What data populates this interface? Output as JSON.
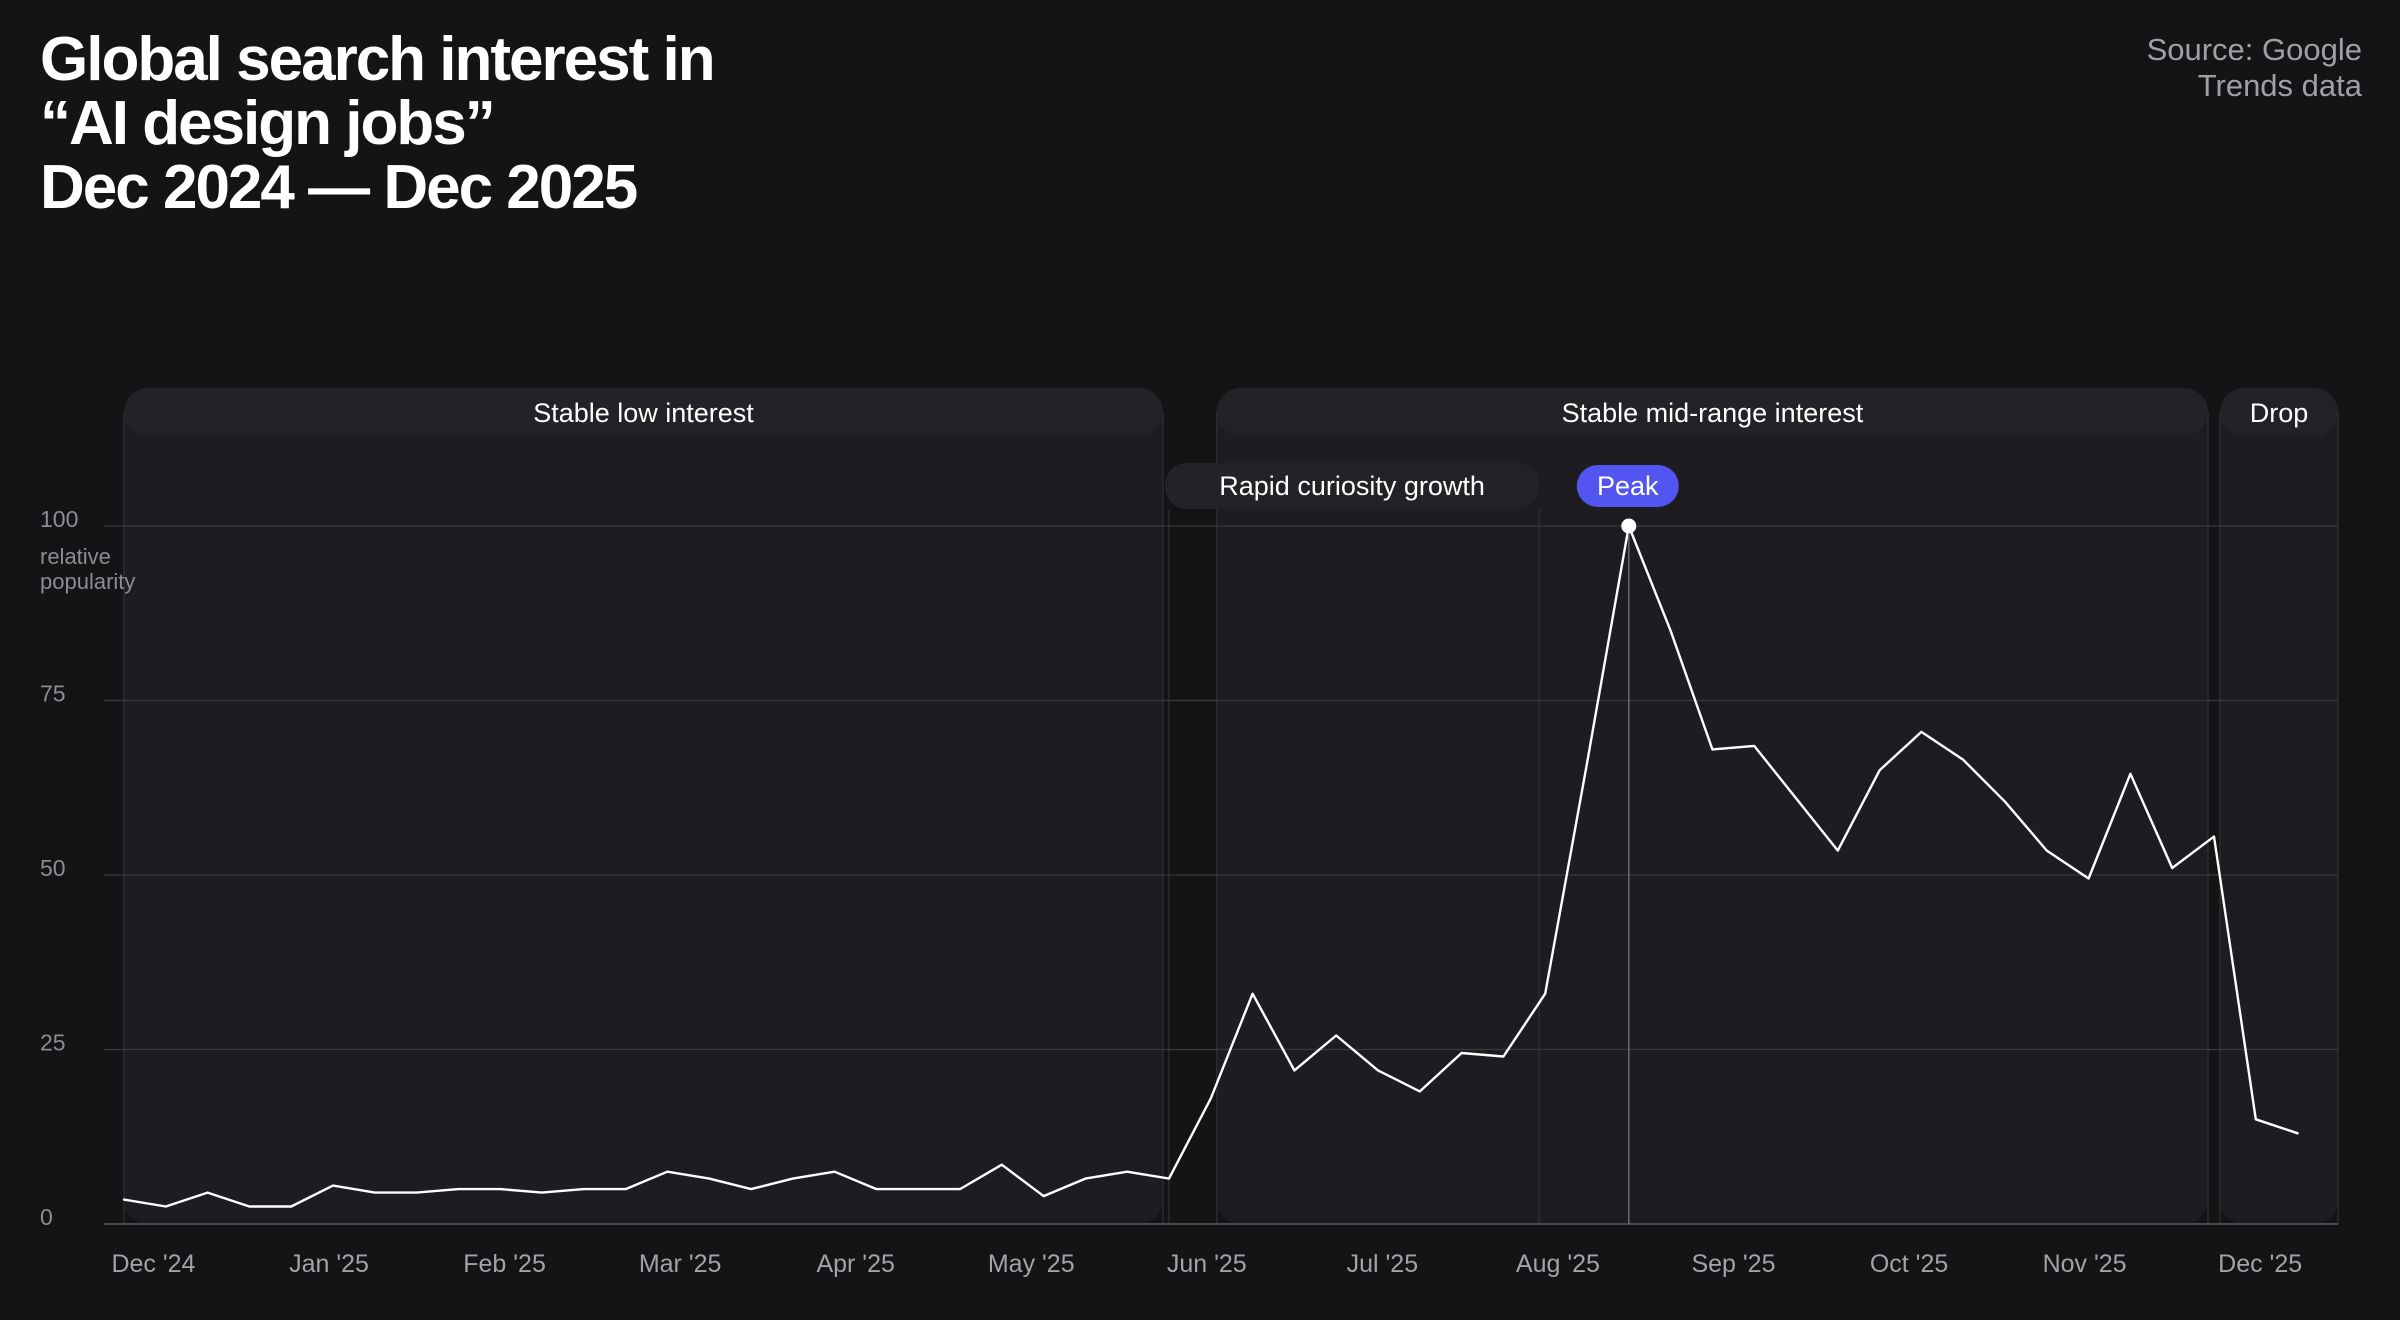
{
  "header": {
    "title_lines": [
      "Global search interest in",
      "“AI design jobs”",
      "Dec 2024 — Dec 2025"
    ],
    "source_lines": [
      "Source: Google",
      "Trends data"
    ]
  },
  "colors": {
    "background": "#141315",
    "line": "#ffffff",
    "grid": "#3a393e",
    "band_fill": "#1d1c20",
    "peak_accent": "#5355f0"
  },
  "chart_data": {
    "type": "line",
    "title": "Global search interest in “AI design jobs” Dec 2024 — Dec 2025",
    "ylabel": "relative popularity",
    "xlabel": "",
    "ylim": [
      0,
      100
    ],
    "yticks": [
      0,
      25,
      50,
      75,
      100
    ],
    "grid": true,
    "x_tick_labels": [
      "Dec '24",
      "Jan '25",
      "Feb '25",
      "Mar '25",
      "Apr '25",
      "May '25",
      "Jun '25",
      "Jul '25",
      "Aug '25",
      "Sep '25",
      "Oct '25",
      "Nov '25",
      "Dec '25"
    ],
    "x_tick_weeks": [
      0.8,
      5,
      9.2,
      13.4,
      17.6,
      21.8,
      26,
      30.2,
      34.4,
      38.6,
      42.8,
      47,
      51.2
    ],
    "series": [
      {
        "values": [
          3.5,
          2.5,
          4.5,
          2.5,
          2.5,
          5.5,
          4.5,
          4.5,
          5,
          5,
          4.5,
          5,
          5,
          7.5,
          6.5,
          5,
          6.5,
          7.5,
          5,
          5,
          5,
          8.5,
          4,
          6.5,
          7.5,
          6.5,
          18,
          33,
          22,
          27,
          22,
          19,
          24.5,
          24,
          33,
          66,
          100,
          85,
          68,
          68.5,
          61,
          53.5,
          65,
          70.5,
          66.5,
          60.5,
          53.5,
          49.5,
          64.5,
          51,
          55.5,
          15,
          13
        ]
      }
    ],
    "peak": {
      "week": 36,
      "value": 100,
      "label": "Peak"
    },
    "phases": [
      {
        "label": "Stable low interest",
        "start": 0,
        "end": 25
      },
      {
        "label": "Rapid curiosity growth",
        "start": 25,
        "end": 34
      },
      {
        "label": "Stable mid-range interest",
        "start": 26,
        "end": 50
      },
      {
        "label": "Drop",
        "start": 50,
        "end": 53
      }
    ]
  }
}
